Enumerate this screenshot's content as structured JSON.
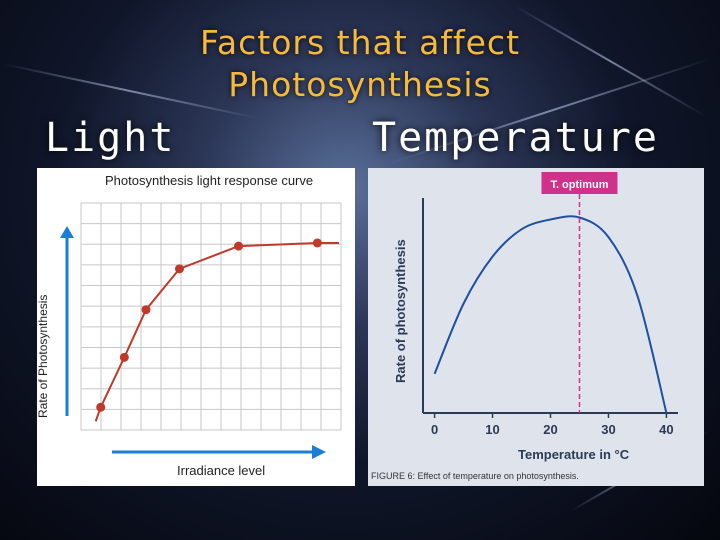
{
  "slide": {
    "title_line1": "Factors that affect",
    "title_line2": "Photosynthesis",
    "heading_left": "Light",
    "heading_right": "Temperature"
  },
  "colors": {
    "title": "#f6b93b",
    "light_curve": "#c0392b",
    "axis_arrow": "#1a7fd4",
    "temp_curve": "#1f4fa0",
    "optimum": "#d0318a"
  },
  "chart_data": [
    {
      "type": "line",
      "title": "Photosynthesis light response curve",
      "xlabel": "Irradiance level",
      "ylabel": "Rate of Photosynthesis",
      "x": [
        0.5,
        1.1,
        1.65,
        2.5,
        4.0,
        6.0
      ],
      "values": [
        0.5,
        1.6,
        2.65,
        3.55,
        4.05,
        4.12
      ],
      "xlim": [
        0,
        6.6
      ],
      "ylim": [
        0,
        5
      ],
      "grid": true
    },
    {
      "type": "line",
      "title": "T. optimum",
      "xlabel": "Temperature in °C",
      "ylabel": "Rate of photosynthesis",
      "caption": "FIGURE 6: Effect of temperature on photosynthesis.",
      "x": [
        0,
        5,
        10,
        15,
        20,
        25,
        30,
        35,
        40
      ],
      "values": [
        0.2,
        0.56,
        0.8,
        0.94,
        0.99,
        1.0,
        0.9,
        0.6,
        0.0
      ],
      "optimum_x": 25,
      "xticks": [
        "0",
        "10",
        "20",
        "30",
        "40"
      ],
      "xlim": [
        -2,
        42
      ],
      "ylim": [
        0,
        1.1
      ],
      "grid": false
    }
  ]
}
